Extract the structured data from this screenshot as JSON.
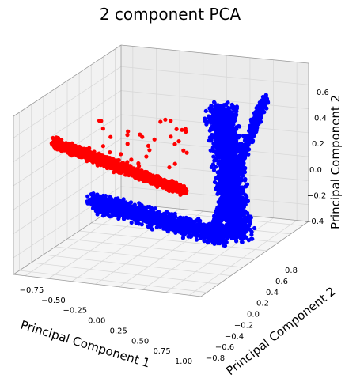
{
  "chart_data": {
    "type": "scatter",
    "title": "2 component PCA",
    "xlabel": "Principal Component 1",
    "ylabel": "Principal Component 2",
    "zlabel": "Principal Component 2",
    "x_ticks": [
      "−0.75",
      "−0.50",
      "−0.25",
      "0.00",
      "0.25",
      "0.50",
      "0.75",
      "1.00"
    ],
    "y_ticks": [
      "−0.8",
      "−0.6",
      "−0.4",
      "−0.2",
      "0.0",
      "0.2",
      "0.4",
      "0.6",
      "0.8"
    ],
    "z_ticks": [
      "−0.4",
      "−0.2",
      "0.0",
      "0.2",
      "0.4",
      "0.6"
    ],
    "grid": true,
    "series": [
      {
        "color": "#ff0000",
        "points": 1800
      },
      {
        "color": "#0000ff",
        "points": 4200
      }
    ]
  }
}
